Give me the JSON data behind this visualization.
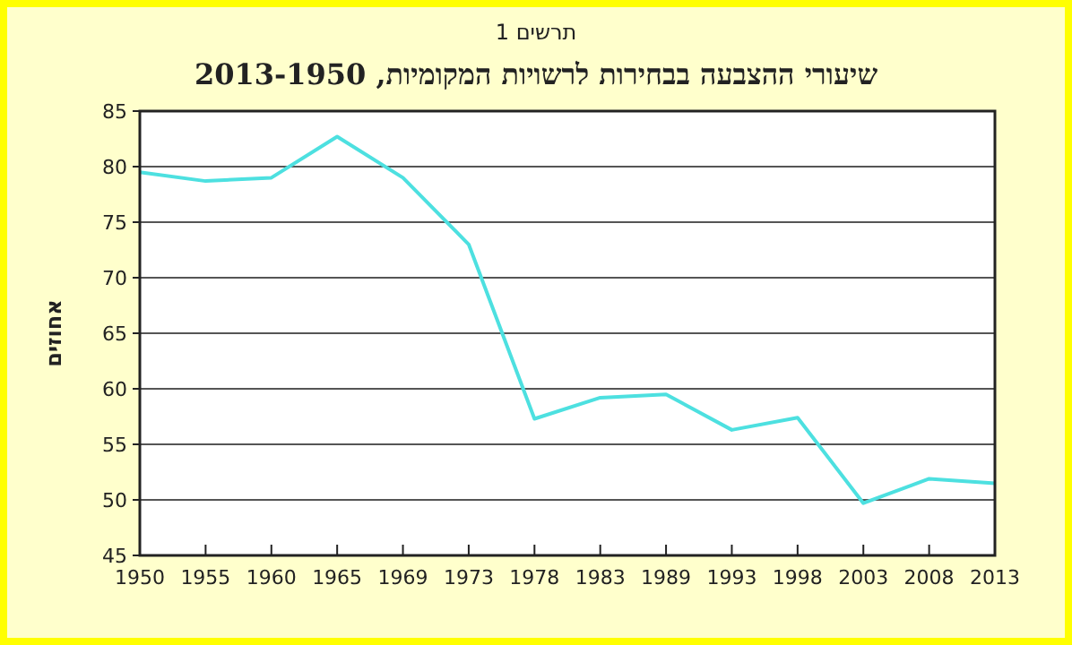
{
  "chart_data": {
    "type": "line",
    "subtitle": "תרשים 1",
    "title": "שיעורי ההצבעה בבחירות לרשויות המקומיות, 2013-1950",
    "ylabel": "אחוזים",
    "categories": [
      "1950",
      "1955",
      "1960",
      "1965",
      "1969",
      "1973",
      "1978",
      "1983",
      "1989",
      "1993",
      "1998",
      "2003",
      "2008",
      "2013"
    ],
    "values": [
      79.5,
      78.7,
      79.0,
      82.7,
      79.0,
      73.0,
      57.3,
      59.2,
      59.5,
      56.3,
      57.4,
      49.7,
      51.9,
      51.5
    ],
    "color": "#4de0e0",
    "ylim": [
      45,
      85
    ],
    "yticks": [
      45,
      50,
      55,
      60,
      65,
      70,
      75,
      80,
      85
    ],
    "grid": "y",
    "marker": "none",
    "line_style": "solid"
  }
}
